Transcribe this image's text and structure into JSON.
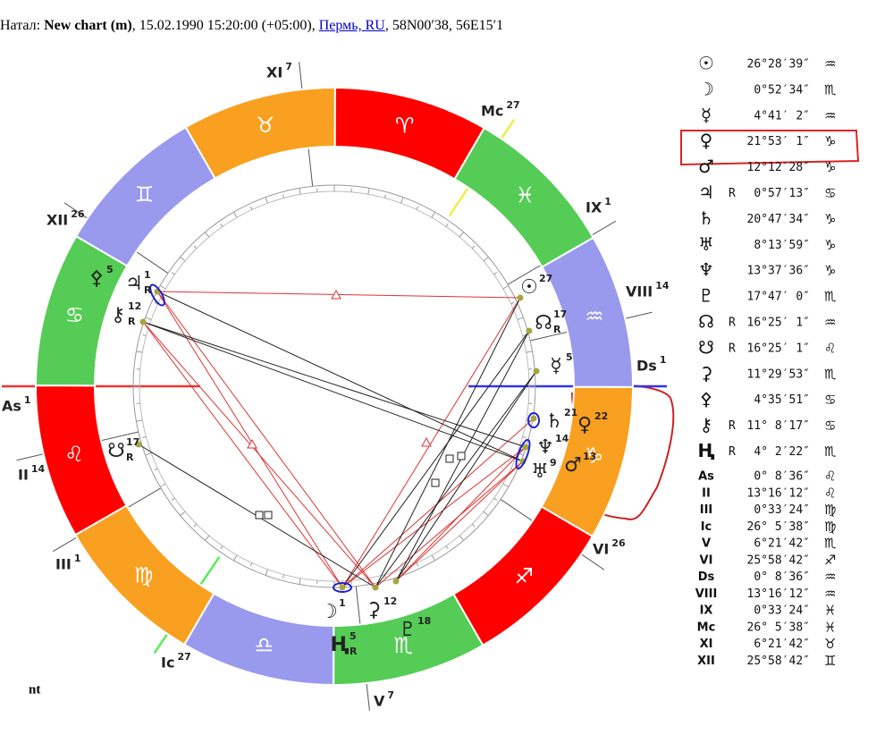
{
  "header": {
    "label": "Натал:",
    "name": "New chart (m)",
    "info": ", 15.02.1990 15:20:00 (+05:00),",
    "place": "Пермь, RU",
    "coords": ", 58N00′38, 56E15′1"
  },
  "wheel": {
    "signs": [
      "♈",
      "♉",
      "♊",
      "♋",
      "♌",
      "♍",
      "♎",
      "♏",
      "♐",
      "♑",
      "♒",
      "♓"
    ],
    "houses": [
      {
        "label": "As",
        "degree": 1
      },
      {
        "label": "II",
        "degree": 14
      },
      {
        "label": "III",
        "degree": 1
      },
      {
        "label": "Ic",
        "degree": 27
      },
      {
        "label": "V",
        "degree": 7
      },
      {
        "label": "VI",
        "degree": 26
      },
      {
        "label": "Ds",
        "degree": 1
      },
      {
        "label": "VIII",
        "degree": 14
      },
      {
        "label": "IX",
        "degree": 1
      },
      {
        "label": "Mc",
        "degree": 27
      },
      {
        "label": "XI",
        "degree": 7
      },
      {
        "label": "XII",
        "degree": 26
      }
    ],
    "planets": [
      {
        "glyph": "☉",
        "degree": 27
      },
      {
        "glyph": "☊",
        "degree": 17,
        "retro": "R"
      },
      {
        "glyph": "☿",
        "degree": 5
      },
      {
        "glyph": "♄",
        "degree": 21
      },
      {
        "glyph": "♀",
        "degree": 22
      },
      {
        "glyph": "♆",
        "degree": 14
      },
      {
        "glyph": "♅",
        "degree": 9
      },
      {
        "glyph": "♂",
        "degree": 13
      },
      {
        "glyph": "☽",
        "degree": 1
      },
      {
        "glyph": "⚳",
        "degree": 12
      },
      {
        "glyph": "♇",
        "degree": 18
      },
      {
        "glyph": "Ⱨ",
        "degree": 5,
        "retro": "R"
      },
      {
        "glyph": "☋",
        "degree": 17,
        "retro": "R"
      },
      {
        "glyph": "⚷",
        "degree": 12,
        "retro": "R"
      },
      {
        "glyph": "♃",
        "degree": 1,
        "retro": "R"
      },
      {
        "glyph": "⚴",
        "degree": 5
      }
    ]
  },
  "positions": [
    {
      "glyph": "☉",
      "pos": "26°28′39″",
      "sign": "♒"
    },
    {
      "glyph": "☽",
      "pos": "0°52′34″",
      "sign": "♏"
    },
    {
      "glyph": "☿",
      "pos": "4°41′ 2″",
      "sign": "♒"
    },
    {
      "glyph": "♀",
      "pos": "21°53′ 1″",
      "sign": "♑"
    },
    {
      "glyph": "♂",
      "pos": "12°12′28″",
      "sign": "♑"
    },
    {
      "glyph": "♃",
      "retro": "R",
      "pos": "0°57′13″",
      "sign": "♋"
    },
    {
      "glyph": "♄",
      "pos": "20°47′34″",
      "sign": "♑"
    },
    {
      "glyph": "♅",
      "pos": "8°13′59″",
      "sign": "♑"
    },
    {
      "glyph": "♆",
      "pos": "13°37′36″",
      "sign": "♑"
    },
    {
      "glyph": "♇",
      "pos": "17°47′ 0″",
      "sign": "♏"
    },
    {
      "glyph": "☊",
      "retro": "R",
      "pos": "16°25′ 1″",
      "sign": "♒"
    },
    {
      "glyph": "☋",
      "retro": "R",
      "pos": "16°25′ 1″",
      "sign": "♌"
    },
    {
      "glyph": "⚳",
      "pos": "11°29′53″",
      "sign": "♏"
    },
    {
      "glyph": "⚴",
      "pos": "4°35′51″",
      "sign": "♋"
    },
    {
      "glyph": "⚷",
      "retro": "R",
      "pos": "11° 8′17″",
      "sign": "♋"
    },
    {
      "glyph": "Ⱨ",
      "retro": "R",
      "pos": "4° 2′22″",
      "sign": "♏"
    },
    {
      "glyph": "As",
      "pos": "0° 8′36″",
      "sign": "♌"
    },
    {
      "glyph": "II",
      "pos": "13°16′12″",
      "sign": "♌"
    },
    {
      "glyph": "III",
      "pos": "0°33′24″",
      "sign": "♍"
    },
    {
      "glyph": "Ic",
      "pos": "26° 5′38″",
      "sign": "♍"
    },
    {
      "glyph": "V",
      "pos": "6°21′42″",
      "sign": "♏"
    },
    {
      "glyph": "VI",
      "pos": "25°58′42″",
      "sign": "♐"
    },
    {
      "glyph": "Ds",
      "pos": "0° 8′36″",
      "sign": "♒"
    },
    {
      "glyph": "VIII",
      "pos": "13°16′12″",
      "sign": "♒"
    },
    {
      "glyph": "IX",
      "pos": "0°33′24″",
      "sign": "♓"
    },
    {
      "glyph": "Mc",
      "pos": "26° 5′38″",
      "sign": "♓"
    },
    {
      "glyph": "XI",
      "pos": "6°21′42″",
      "sign": "♉"
    },
    {
      "glyph": "XII",
      "pos": "25°58′42″",
      "sign": "♊"
    }
  ],
  "footer": "nt"
}
